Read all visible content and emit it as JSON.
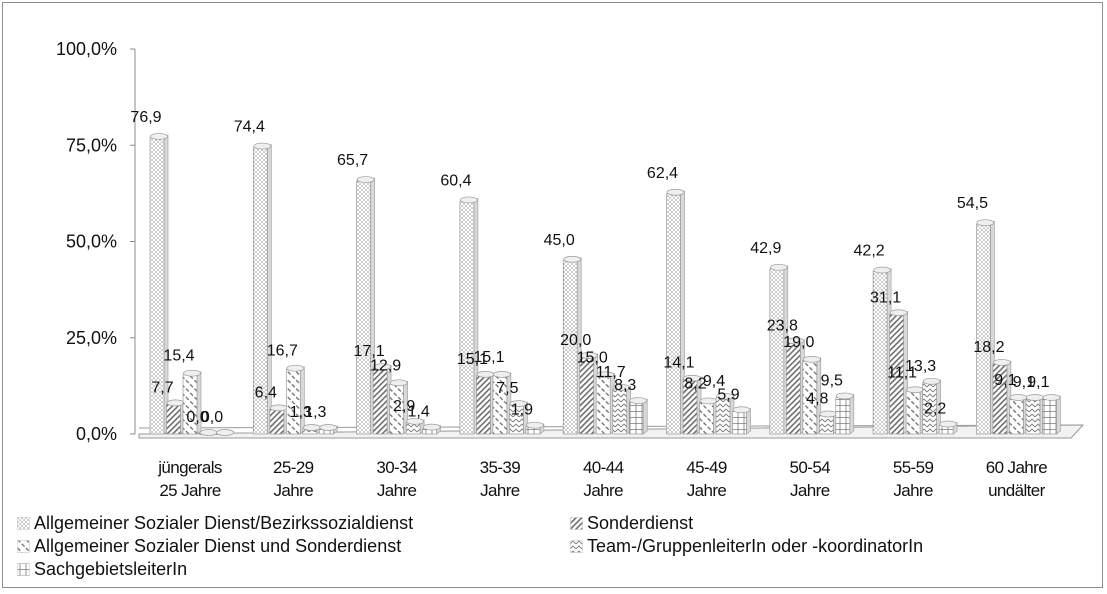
{
  "chart_data": {
    "type": "bar",
    "categories": [
      [
        "jüngerals",
        "25 Jahre"
      ],
      [
        "25-29",
        "Jahre"
      ],
      [
        "30-34",
        "Jahre"
      ],
      [
        "35-39",
        "Jahre"
      ],
      [
        "40-44",
        "Jahre"
      ],
      [
        "45-49",
        "Jahre"
      ],
      [
        "50-54",
        "Jahre"
      ],
      [
        "55-59",
        "Jahre"
      ],
      [
        "60 Jahre",
        "undälter"
      ]
    ],
    "series": [
      {
        "name": "Allgemeiner Sozialer Dienst/Bezirkssozialdienst",
        "pattern": "dots",
        "values": [
          76.9,
          74.4,
          65.7,
          60.4,
          45.0,
          62.4,
          42.9,
          42.2,
          54.5
        ],
        "labels": [
          "76,9",
          "74,4",
          "65,7",
          "60,4",
          "45,0",
          "62,4",
          "42,9",
          "42,2",
          "54,5"
        ]
      },
      {
        "name": "Sonderdienst",
        "pattern": "diagonal-dense",
        "values": [
          7.7,
          6.4,
          17.1,
          15.1,
          20.0,
          14.1,
          23.8,
          31.1,
          18.2
        ],
        "labels": [
          "7,7",
          "6,4",
          "17,1",
          "15,1",
          "20,0",
          "14,1",
          "23,8",
          "31,1",
          "18,2"
        ]
      },
      {
        "name": "Allgemeiner Sozialer Dienst und Sonderdienst",
        "pattern": "diagonal-dashed",
        "values": [
          15.4,
          16.7,
          12.9,
          15.1,
          15.0,
          8.2,
          19.0,
          11.1,
          9.1
        ],
        "labels": [
          "15,4",
          "16,7",
          "12,9",
          "15,1",
          "15,0",
          "8,2",
          "19,0",
          "11,1",
          "9,1"
        ]
      },
      {
        "name": "Team-/GruppenleiterIn oder -koordinatorIn",
        "pattern": "zigzag",
        "values": [
          0.0,
          1.3,
          2.9,
          7.5,
          11.7,
          9.4,
          4.8,
          13.3,
          9.1
        ],
        "labels": [
          "0,0",
          "1,3",
          "2,9",
          "7,5",
          "11,7",
          "9,4",
          "4,8",
          "13,3",
          "9,1"
        ]
      },
      {
        "name": "SachgebietsleiterIn",
        "pattern": "grid",
        "values": [
          0.0,
          1.3,
          1.4,
          1.9,
          8.3,
          5.9,
          9.5,
          2.2,
          9.1
        ],
        "labels": [
          "0,0",
          "1,3",
          "1,4",
          "1,9",
          "8,3",
          "5,9",
          "9,5",
          "2,2",
          "9,1"
        ]
      }
    ],
    "yticks": [
      "0,0%",
      "25,0%",
      "50,0%",
      "75,0%",
      "100,0%"
    ],
    "ylim": [
      0,
      100
    ],
    "title": "",
    "xlabel": "",
    "ylabel": "",
    "legend_position": "bottom",
    "grid": false
  }
}
